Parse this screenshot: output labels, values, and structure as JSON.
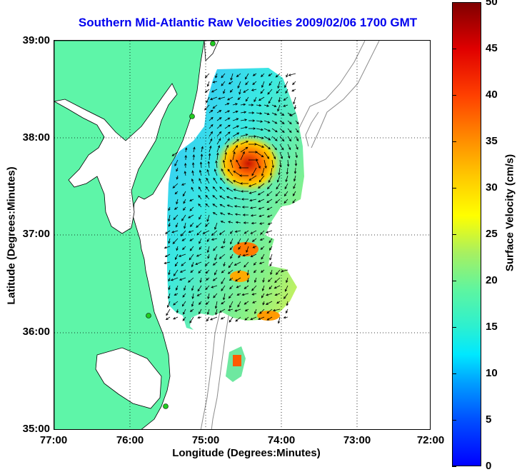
{
  "title": "Southern Mid-Atlantic Raw Velocities 2009/02/06 1700 GMT",
  "x_axis": {
    "label": "Longitude (Degrees:Minutes)",
    "ticks": [
      "77:00",
      "76:00",
      "75:00",
      "74:00",
      "73:00",
      "72:00"
    ]
  },
  "y_axis": {
    "label": "Latitude (Degrees:Minutes)",
    "ticks": [
      "39:00",
      "38:00",
      "37:00",
      "36:00",
      "35:00"
    ]
  },
  "colorbar": {
    "label": "Surface Velocity (cm/s)",
    "ticks": [
      "0",
      "5",
      "10",
      "15",
      "20",
      "25",
      "30",
      "35",
      "40",
      "45",
      "50"
    ],
    "min": 0,
    "max": 50,
    "colormap": "jet"
  },
  "map": {
    "lon_range": [
      -77,
      -72
    ],
    "lat_range": [
      35,
      39
    ],
    "land_color": "#5ef5a8",
    "coast_color": "#000000",
    "bathymetry_color": "#8c8c8c",
    "grid": "dotted",
    "station_color": "#22cc22"
  }
}
